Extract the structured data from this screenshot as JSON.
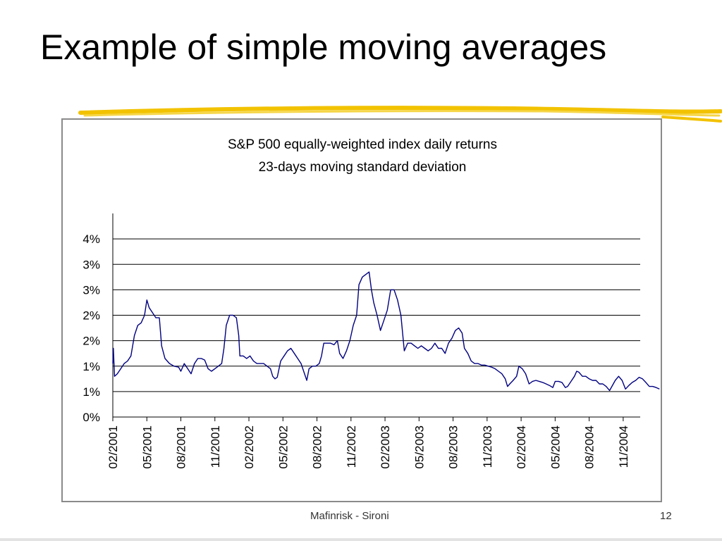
{
  "slide": {
    "title": "Example of simple moving averages",
    "footer_author": "Mafinrisk - Sironi",
    "page_number": "12"
  },
  "colors": {
    "accent_stroke": "#f2c200",
    "line": "#000080",
    "grid": "#000000",
    "frame": "#8a8a8a"
  },
  "chart_data": {
    "type": "line",
    "title_lines": [
      "S&P 500 equally-weighted index daily returns",
      "23-days moving standard deviation"
    ],
    "xlabel": "",
    "ylabel": "",
    "ylim": [
      0,
      4
    ],
    "y_ticks": [
      0,
      0.5,
      1,
      1.5,
      2,
      2.5,
      3,
      3.5
    ],
    "y_tick_labels": [
      "0%",
      "1%",
      "1%",
      "2%",
      "2%",
      "3%",
      "3%",
      "4%"
    ],
    "x_tick_labels": [
      "02/2001",
      "05/2001",
      "08/2001",
      "11/2001",
      "02/2002",
      "05/2002",
      "08/2002",
      "11/2002",
      "02/2003",
      "05/2003",
      "08/2003",
      "11/2003",
      "02/2004",
      "05/2004",
      "08/2004",
      "11/2004"
    ],
    "x_range": [
      0,
      46.5
    ],
    "grid": true,
    "legend": "none",
    "series": [
      {
        "name": "",
        "points": [
          [
            0,
            1.05
          ],
          [
            0.05,
            1.35
          ],
          [
            0.15,
            0.8
          ],
          [
            0.4,
            0.85
          ],
          [
            0.7,
            0.95
          ],
          [
            1.0,
            1.05
          ],
          [
            1.3,
            1.1
          ],
          [
            1.6,
            1.2
          ],
          [
            1.9,
            1.6
          ],
          [
            2.2,
            1.8
          ],
          [
            2.5,
            1.85
          ],
          [
            2.8,
            2.0
          ],
          [
            3.0,
            2.3
          ],
          [
            3.2,
            2.15
          ],
          [
            3.5,
            2.05
          ],
          [
            3.8,
            1.95
          ],
          [
            4.1,
            1.95
          ],
          [
            4.3,
            1.4
          ],
          [
            4.6,
            1.15
          ],
          [
            5.0,
            1.05
          ],
          [
            5.4,
            1.0
          ],
          [
            5.8,
            0.98
          ],
          [
            6.0,
            0.9
          ],
          [
            6.3,
            1.05
          ],
          [
            6.6,
            0.95
          ],
          [
            6.9,
            0.85
          ],
          [
            7.2,
            1.05
          ],
          [
            7.5,
            1.15
          ],
          [
            7.8,
            1.15
          ],
          [
            8.1,
            1.12
          ],
          [
            8.4,
            0.95
          ],
          [
            8.7,
            0.9
          ],
          [
            9.0,
            0.95
          ],
          [
            9.3,
            1.0
          ],
          [
            9.6,
            1.05
          ],
          [
            9.8,
            1.35
          ],
          [
            10.0,
            1.8
          ],
          [
            10.3,
            2.0
          ],
          [
            10.6,
            2.0
          ],
          [
            10.9,
            1.95
          ],
          [
            11.1,
            1.6
          ],
          [
            11.2,
            1.2
          ],
          [
            11.5,
            1.2
          ],
          [
            11.8,
            1.15
          ],
          [
            12.1,
            1.2
          ],
          [
            12.4,
            1.1
          ],
          [
            12.7,
            1.05
          ],
          [
            13.0,
            1.05
          ],
          [
            13.3,
            1.05
          ],
          [
            13.6,
            1.0
          ],
          [
            13.9,
            0.95
          ],
          [
            14.1,
            0.8
          ],
          [
            14.3,
            0.75
          ],
          [
            14.5,
            0.78
          ],
          [
            14.8,
            1.1
          ],
          [
            15.1,
            1.2
          ],
          [
            15.4,
            1.3
          ],
          [
            15.7,
            1.35
          ],
          [
            16.0,
            1.25
          ],
          [
            16.3,
            1.15
          ],
          [
            16.6,
            1.05
          ],
          [
            16.9,
            0.85
          ],
          [
            17.1,
            0.72
          ],
          [
            17.3,
            0.95
          ],
          [
            17.6,
            1.0
          ],
          [
            17.9,
            1.0
          ],
          [
            18.2,
            1.05
          ],
          [
            18.4,
            1.2
          ],
          [
            18.6,
            1.45
          ],
          [
            18.9,
            1.45
          ],
          [
            19.2,
            1.45
          ],
          [
            19.5,
            1.42
          ],
          [
            19.8,
            1.5
          ],
          [
            20.0,
            1.25
          ],
          [
            20.3,
            1.15
          ],
          [
            20.6,
            1.3
          ],
          [
            20.9,
            1.5
          ],
          [
            21.2,
            1.8
          ],
          [
            21.5,
            2.0
          ],
          [
            21.7,
            2.6
          ],
          [
            22.0,
            2.75
          ],
          [
            22.3,
            2.8
          ],
          [
            22.6,
            2.85
          ],
          [
            22.8,
            2.5
          ],
          [
            23.0,
            2.25
          ],
          [
            23.3,
            2.0
          ],
          [
            23.6,
            1.7
          ],
          [
            23.9,
            1.9
          ],
          [
            24.2,
            2.1
          ],
          [
            24.5,
            2.5
          ],
          [
            24.8,
            2.5
          ],
          [
            25.1,
            2.3
          ],
          [
            25.4,
            2.0
          ],
          [
            25.7,
            1.3
          ],
          [
            26.0,
            1.45
          ],
          [
            26.3,
            1.45
          ],
          [
            26.6,
            1.4
          ],
          [
            26.9,
            1.35
          ],
          [
            27.2,
            1.4
          ],
          [
            27.5,
            1.35
          ],
          [
            27.8,
            1.3
          ],
          [
            28.1,
            1.35
          ],
          [
            28.4,
            1.45
          ],
          [
            28.7,
            1.35
          ],
          [
            29.0,
            1.35
          ],
          [
            29.3,
            1.25
          ],
          [
            29.6,
            1.45
          ],
          [
            29.9,
            1.55
          ],
          [
            30.2,
            1.7
          ],
          [
            30.5,
            1.75
          ],
          [
            30.8,
            1.65
          ],
          [
            31.0,
            1.35
          ],
          [
            31.3,
            1.25
          ],
          [
            31.6,
            1.1
          ],
          [
            31.9,
            1.05
          ],
          [
            32.2,
            1.05
          ],
          [
            32.5,
            1.02
          ],
          [
            32.8,
            1.02
          ],
          [
            33.1,
            1.0
          ],
          [
            33.4,
            0.98
          ],
          [
            33.7,
            0.95
          ],
          [
            34.0,
            0.9
          ],
          [
            34.3,
            0.85
          ],
          [
            34.6,
            0.75
          ],
          [
            34.8,
            0.6
          ],
          [
            35.0,
            0.65
          ],
          [
            35.3,
            0.72
          ],
          [
            35.6,
            0.8
          ],
          [
            35.8,
            1.0
          ],
          [
            36.1,
            0.95
          ],
          [
            36.4,
            0.85
          ],
          [
            36.7,
            0.65
          ],
          [
            37.0,
            0.7
          ],
          [
            37.3,
            0.72
          ],
          [
            37.6,
            0.7
          ],
          [
            37.9,
            0.68
          ],
          [
            38.2,
            0.65
          ],
          [
            38.5,
            0.62
          ],
          [
            38.8,
            0.58
          ],
          [
            39.0,
            0.7
          ],
          [
            39.3,
            0.7
          ],
          [
            39.6,
            0.68
          ],
          [
            39.9,
            0.58
          ],
          [
            40.1,
            0.6
          ],
          [
            40.4,
            0.7
          ],
          [
            40.7,
            0.8
          ],
          [
            40.9,
            0.9
          ],
          [
            41.1,
            0.88
          ],
          [
            41.4,
            0.8
          ],
          [
            41.7,
            0.8
          ],
          [
            42.0,
            0.75
          ],
          [
            42.3,
            0.72
          ],
          [
            42.6,
            0.72
          ],
          [
            42.9,
            0.65
          ],
          [
            43.2,
            0.65
          ],
          [
            43.5,
            0.6
          ],
          [
            43.8,
            0.52
          ],
          [
            44.0,
            0.6
          ],
          [
            44.3,
            0.72
          ],
          [
            44.6,
            0.8
          ],
          [
            44.9,
            0.72
          ],
          [
            45.2,
            0.55
          ],
          [
            45.5,
            0.62
          ],
          [
            45.8,
            0.68
          ],
          [
            46.1,
            0.72
          ],
          [
            46.4,
            0.78
          ],
          [
            46.7,
            0.75
          ],
          [
            47.0,
            0.68
          ],
          [
            47.3,
            0.6
          ],
          [
            47.6,
            0.6
          ],
          [
            47.9,
            0.58
          ],
          [
            48.2,
            0.55
          ]
        ]
      }
    ]
  }
}
